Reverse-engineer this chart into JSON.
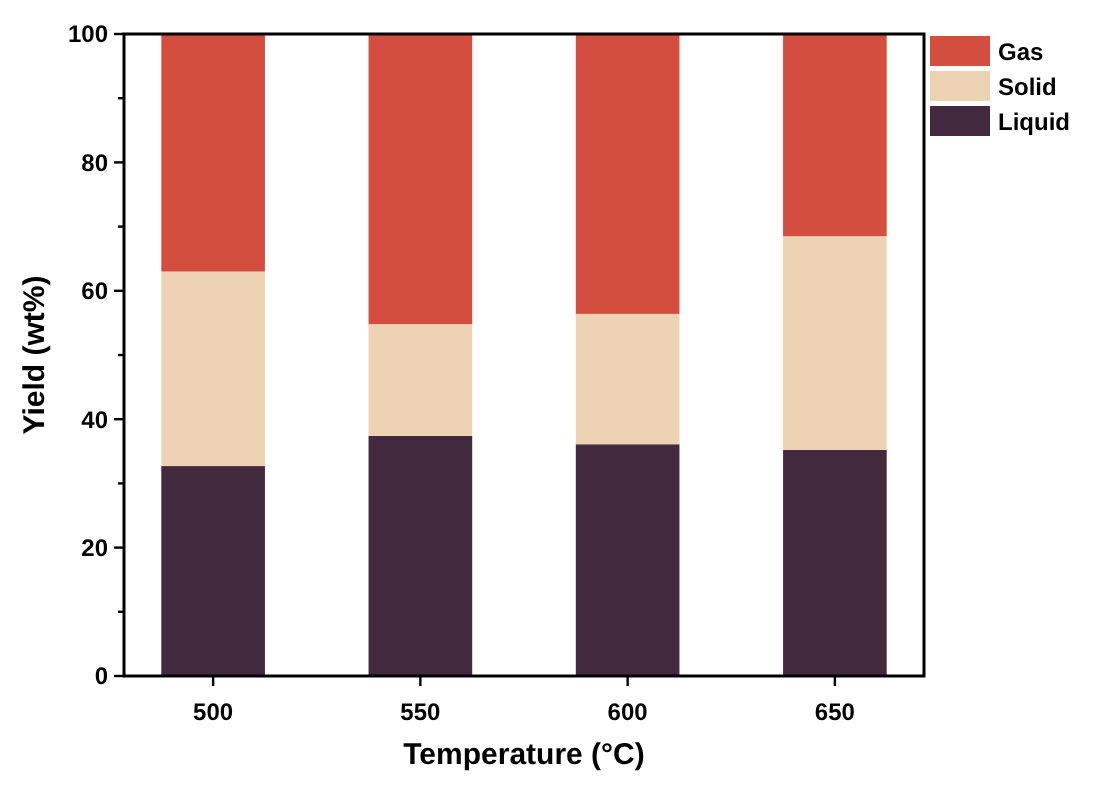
{
  "chart_data": {
    "type": "bar",
    "stacked": true,
    "xlabel": "Temperature (°C)",
    "ylabel": "Yield (wt%)",
    "categories": [
      "500",
      "550",
      "600",
      "650"
    ],
    "series": [
      {
        "name": "Liquid",
        "color": "#43293d",
        "values": [
          32.7,
          37.4,
          36.1,
          35.2
        ]
      },
      {
        "name": "Solid",
        "color": "#edd3b4",
        "values": [
          30.3,
          17.4,
          20.3,
          33.3
        ]
      },
      {
        "name": "Gas",
        "color": "#d44e3f",
        "values": [
          37.0,
          45.2,
          43.6,
          31.5
        ]
      }
    ],
    "ylim": [
      0,
      100
    ],
    "yticks": [
      0,
      {
        "value": 10,
        "label": null
      },
      20,
      {
        "value": 30,
        "label": null
      },
      40,
      {
        "value": 50,
        "label": null
      },
      60,
      {
        "value": 70,
        "label": null
      },
      80,
      {
        "value": 90,
        "label": null
      },
      100
    ],
    "grid": false,
    "legend": "top right"
  }
}
